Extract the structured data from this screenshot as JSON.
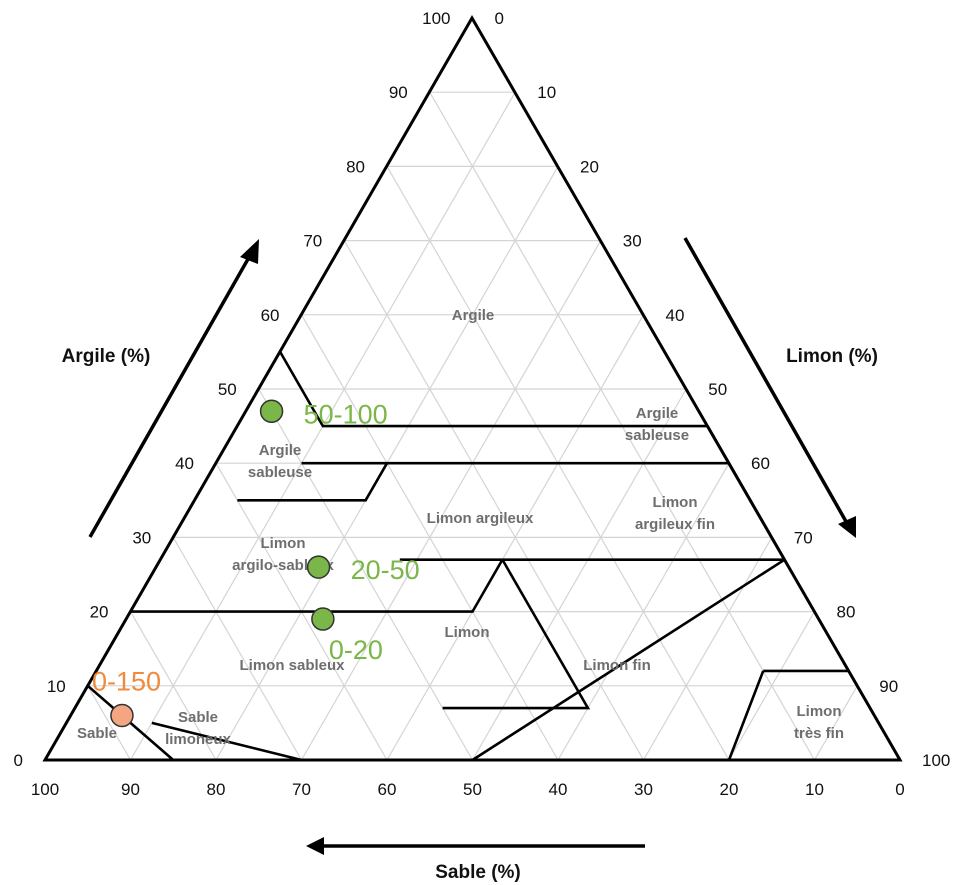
{
  "diagram": {
    "axes": {
      "clay": {
        "title": "Argile (%)",
        "direction": "increasing-upward"
      },
      "silt": {
        "title": "Limon (%)",
        "direction": "increasing-downward-right"
      },
      "sand": {
        "title": "Sable (%)",
        "direction": "increasing-leftward"
      }
    },
    "tick_values": [
      0,
      10,
      20,
      30,
      40,
      50,
      60,
      70,
      80,
      90,
      100
    ],
    "regions": [
      {
        "id": "argile",
        "label": "Argile"
      },
      {
        "id": "argile-sableuse-left",
        "label": "Argile\nsableuse"
      },
      {
        "id": "argile-sableuse-right",
        "label": "Argile\nsableuse"
      },
      {
        "id": "limon-argilo-sableux",
        "label": "Limon\nargilo-sableux"
      },
      {
        "id": "limon-argileux",
        "label": "Limon argileux"
      },
      {
        "id": "limon-argileux-fin",
        "label": "Limon\nargileux fin"
      },
      {
        "id": "limon-sableux",
        "label": "Limon sableux"
      },
      {
        "id": "limon",
        "label": "Limon"
      },
      {
        "id": "limon-fin",
        "label": "Limon fin"
      },
      {
        "id": "limon-tres-fin",
        "label": "Limon\ntrès fin"
      },
      {
        "id": "sable",
        "label": "Sable"
      },
      {
        "id": "sable-limoneux",
        "label": "Sable\nlimoneux"
      }
    ],
    "samples": [
      {
        "label": "50-100",
        "sand": 50,
        "silt": 3,
        "clay": 47,
        "color": "#7ab648"
      },
      {
        "label": "20-50",
        "sand": 55,
        "silt": 19,
        "clay": 26,
        "color": "#7ab648"
      },
      {
        "label": "0-20",
        "sand": 58,
        "silt": 23,
        "clay": 19,
        "color": "#7ab648"
      },
      {
        "label": "0-150",
        "sand": 88,
        "silt": 6,
        "clay": 6,
        "color": "#f4a582"
      }
    ]
  }
}
